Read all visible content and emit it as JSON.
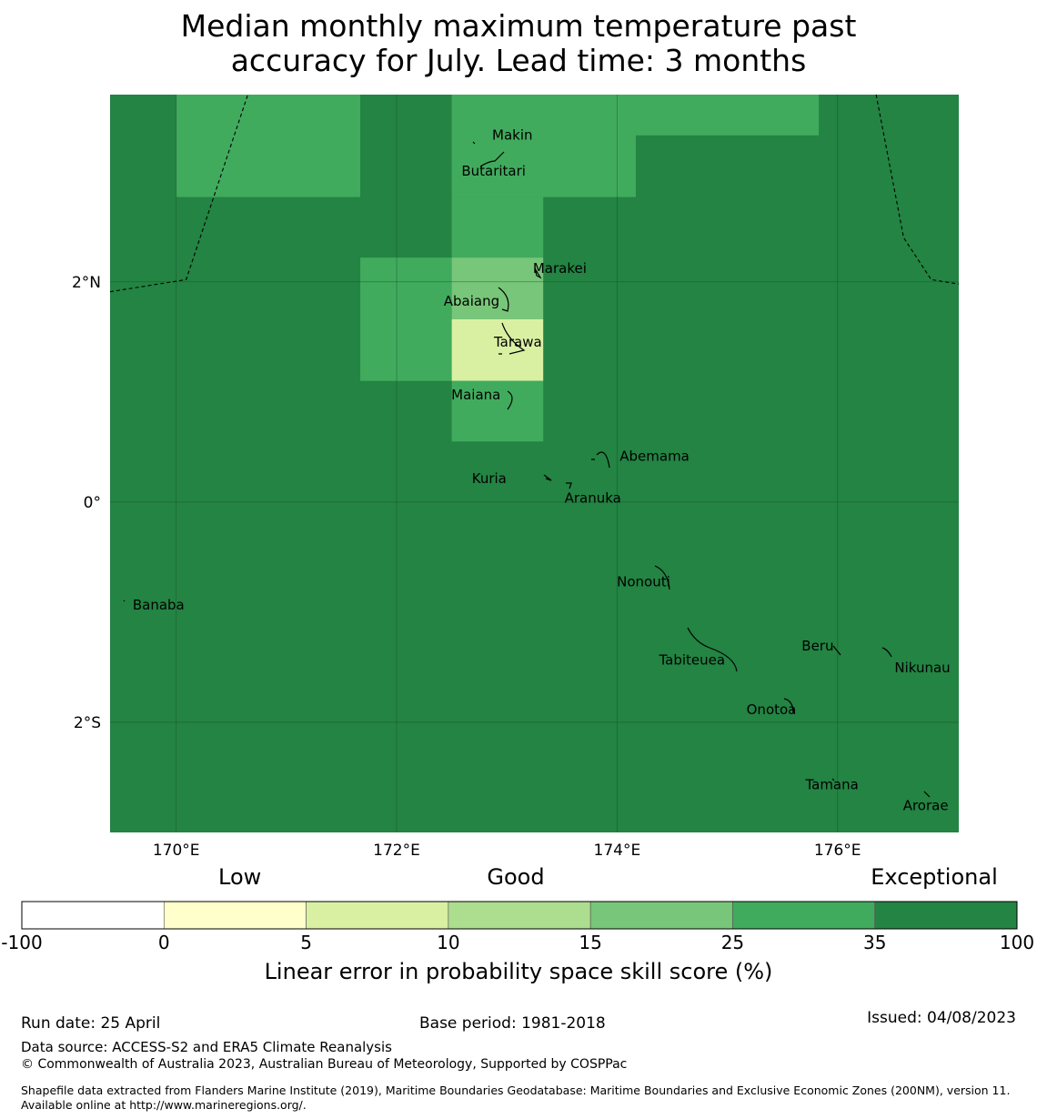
{
  "title_line1": "Median monthly maximum temperature past",
  "title_line2": "accuracy for July. Lead time: 3 months",
  "map": {
    "lon_range": [
      169.4,
      177.1
    ],
    "lat_range": [
      -3.0,
      3.7
    ],
    "x_ticks": [
      {
        "lon": 170,
        "label": "170°E"
      },
      {
        "lon": 172,
        "label": "172°E"
      },
      {
        "lon": 174,
        "label": "174°E"
      },
      {
        "lon": 176,
        "label": "176°E"
      }
    ],
    "y_ticks": [
      {
        "lat": 2,
        "label": "2°N"
      },
      {
        "lat": 0,
        "label": "0°"
      },
      {
        "lat": -2,
        "label": "2°S"
      }
    ],
    "background_category": 6,
    "cells": [
      {
        "lon0": 170.0,
        "lon1": 171.67,
        "lat0": 2.77,
        "lat1": 3.7,
        "cat": 5
      },
      {
        "lon0": 172.5,
        "lon1": 174.17,
        "lat0": 2.77,
        "lat1": 3.7,
        "cat": 5
      },
      {
        "lon0": 174.17,
        "lon1": 175.83,
        "lat0": 3.33,
        "lat1": 3.7,
        "cat": 5
      },
      {
        "lon0": 172.5,
        "lon1": 173.33,
        "lat0": 2.22,
        "lat1": 2.77,
        "cat": 5
      },
      {
        "lon0": 171.67,
        "lon1": 172.5,
        "lat0": 1.1,
        "lat1": 2.22,
        "cat": 5
      },
      {
        "lon0": 172.5,
        "lon1": 173.33,
        "lat0": 1.66,
        "lat1": 2.22,
        "cat": 4
      },
      {
        "lon0": 172.5,
        "lon1": 173.33,
        "lat0": 1.1,
        "lat1": 1.66,
        "cat": 2
      },
      {
        "lon0": 172.5,
        "lon1": 173.33,
        "lat0": 0.55,
        "lat1": 1.1,
        "cat": 5
      }
    ],
    "boundaries": [
      [
        [
          169.4,
          1.91
        ],
        [
          170.09,
          2.02
        ],
        [
          170.65,
          3.7
        ]
      ],
      [
        [
          176.35,
          3.7
        ],
        [
          176.6,
          2.4
        ],
        [
          176.85,
          2.02
        ],
        [
          177.1,
          1.98
        ]
      ]
    ],
    "places": [
      {
        "name": "Makin",
        "lon": 173.05,
        "lat": 3.33
      },
      {
        "name": "Butaritari",
        "lon": 172.88,
        "lat": 3.0
      },
      {
        "name": "Marakei",
        "lon": 173.48,
        "lat": 2.12
      },
      {
        "name": "Abaiang",
        "lon": 172.68,
        "lat": 1.82
      },
      {
        "name": "Tarawa",
        "lon": 173.1,
        "lat": 1.45
      },
      {
        "name": "Maiana",
        "lon": 172.72,
        "lat": 0.97
      },
      {
        "name": "Abemama",
        "lon": 174.34,
        "lat": 0.41
      },
      {
        "name": "Kuria",
        "lon": 172.84,
        "lat": 0.21
      },
      {
        "name": "Aranuka",
        "lon": 173.78,
        "lat": 0.03
      },
      {
        "name": "Nonouti",
        "lon": 174.24,
        "lat": -0.73
      },
      {
        "name": "Banaba",
        "lon": 169.84,
        "lat": -0.94
      },
      {
        "name": "Beru",
        "lon": 175.82,
        "lat": -1.31
      },
      {
        "name": "Tabiteuea",
        "lon": 174.68,
        "lat": -1.44
      },
      {
        "name": "Nikunau",
        "lon": 176.77,
        "lat": -1.51
      },
      {
        "name": "Onotoa",
        "lon": 175.4,
        "lat": -1.89
      },
      {
        "name": "Tamana",
        "lon": 175.95,
        "lat": -2.57
      },
      {
        "name": "Arorae",
        "lon": 176.8,
        "lat": -2.76
      }
    ]
  },
  "colorbar": {
    "categories": [
      {
        "label": "Low",
        "align": "left"
      },
      {
        "label": "Good",
        "align": "center"
      },
      {
        "label": "Exceptional",
        "align": "right"
      }
    ],
    "bins": [
      {
        "from": -100,
        "to": 0,
        "color": "#ffffff"
      },
      {
        "from": 0,
        "to": 5,
        "color": "#ffffcc"
      },
      {
        "from": 5,
        "to": 10,
        "color": "#d9f0a3"
      },
      {
        "from": 10,
        "to": 15,
        "color": "#addd8e"
      },
      {
        "from": 15,
        "to": 25,
        "color": "#78c679"
      },
      {
        "from": 25,
        "to": 35,
        "color": "#41ab5d"
      },
      {
        "from": 35,
        "to": 100,
        "color": "#238443"
      }
    ],
    "tick_labels": [
      "-100",
      "0",
      "5",
      "10",
      "15",
      "25",
      "35",
      "100"
    ],
    "label": "Linear error in probability space skill score (%)"
  },
  "footer": {
    "run_date": "Run date: 25 April",
    "base_period": "Base period: 1981-2018",
    "issued": "Issued: 04/08/2023",
    "data_source": "Data source: ACCESS-S2 and ERA5 Climate Reanalysis",
    "copyright": "© Commonwealth of Australia 2023, Australian Bureau of Meteorology, Supported by COSPPac",
    "shapefile": "Shapefile data extracted from Flanders Marine Institute (2019), Maritime Boundaries Geodatabase: Maritime Boundaries and Exclusive Economic Zones (200NM), version 11. Available online at http://www.marineregions.org/."
  }
}
